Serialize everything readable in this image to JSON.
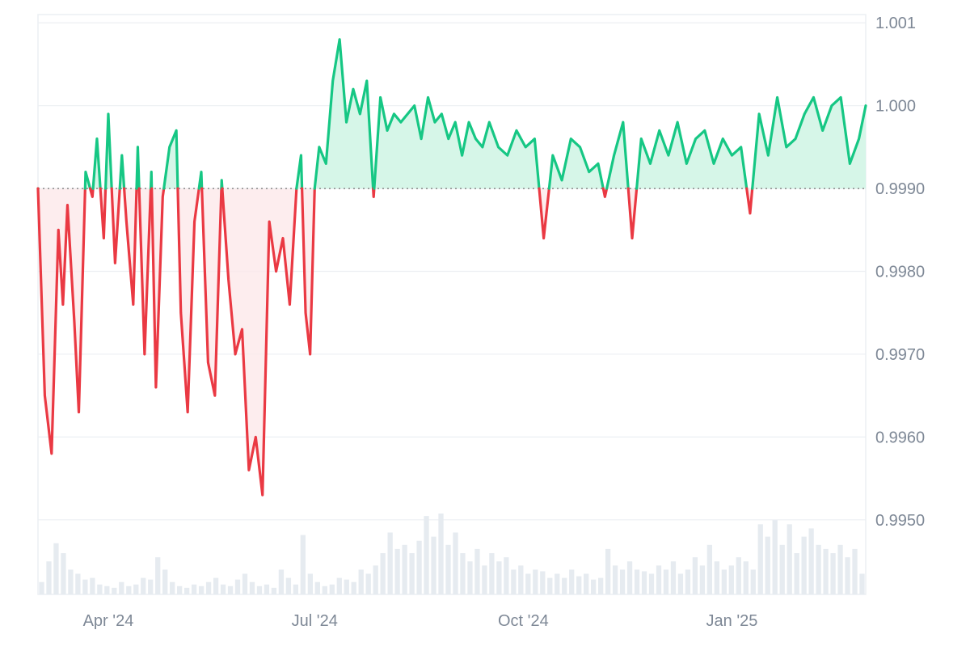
{
  "chart_data": {
    "type": "line",
    "baseline": 0.999,
    "ylim": [
      0.9941,
      1.0011
    ],
    "y_ticks": [
      {
        "value": 1.001,
        "label": "1.001"
      },
      {
        "value": 1.0,
        "label": "1.000"
      },
      {
        "value": 0.999,
        "label": "0.9990"
      },
      {
        "value": 0.998,
        "label": "0.9980"
      },
      {
        "value": 0.997,
        "label": "0.9970"
      },
      {
        "value": 0.996,
        "label": "0.9960"
      },
      {
        "value": 0.995,
        "label": "0.9950"
      }
    ],
    "x_start": "2024-03-01",
    "x_end": "2025-03-01",
    "x_ticks": [
      {
        "date": "2024-04-01",
        "label": "Apr '24"
      },
      {
        "date": "2024-07-01",
        "label": "Jul '24"
      },
      {
        "date": "2024-10-01",
        "label": "Oct '24"
      },
      {
        "date": "2025-01-01",
        "label": "Jan '25"
      }
    ],
    "colors": {
      "above": "#16c784",
      "below": "#ea3943",
      "above_fill": "#d1f5e6",
      "below_fill": "#fde8ea",
      "baseline": "#888888",
      "volume": "#e6ebf0",
      "grid": "#eceff3",
      "axis_text": "#7e8896"
    },
    "grid": true,
    "series": [
      {
        "x": [
          "2024-03-01",
          "2024-03-04",
          "2024-03-07",
          "2024-03-10",
          "2024-03-12",
          "2024-03-14",
          "2024-03-17",
          "2024-03-19",
          "2024-03-22",
          "2024-03-25",
          "2024-03-27",
          "2024-03-30",
          "2024-04-01",
          "2024-04-04",
          "2024-04-07",
          "2024-04-09",
          "2024-04-12",
          "2024-04-14",
          "2024-04-17",
          "2024-04-20",
          "2024-04-22",
          "2024-04-25",
          "2024-04-28",
          "2024-05-01",
          "2024-05-03",
          "2024-05-06",
          "2024-05-09",
          "2024-05-12",
          "2024-05-15",
          "2024-05-18",
          "2024-05-21",
          "2024-05-24",
          "2024-05-27",
          "2024-05-30",
          "2024-06-02",
          "2024-06-05",
          "2024-06-08",
          "2024-06-11",
          "2024-06-14",
          "2024-06-17",
          "2024-06-20",
          "2024-06-23",
          "2024-06-25",
          "2024-06-27",
          "2024-06-29",
          "2024-07-01",
          "2024-07-03",
          "2024-07-06",
          "2024-07-09",
          "2024-07-12",
          "2024-07-15",
          "2024-07-18",
          "2024-07-21",
          "2024-07-24",
          "2024-07-27",
          "2024-07-30",
          "2024-08-02",
          "2024-08-05",
          "2024-08-08",
          "2024-08-11",
          "2024-08-14",
          "2024-08-17",
          "2024-08-20",
          "2024-08-23",
          "2024-08-26",
          "2024-08-29",
          "2024-09-01",
          "2024-09-04",
          "2024-09-07",
          "2024-09-10",
          "2024-09-13",
          "2024-09-16",
          "2024-09-20",
          "2024-09-24",
          "2024-09-28",
          "2024-10-02",
          "2024-10-06",
          "2024-10-10",
          "2024-10-14",
          "2024-10-18",
          "2024-10-22",
          "2024-10-26",
          "2024-10-30",
          "2024-11-03",
          "2024-11-06",
          "2024-11-10",
          "2024-11-14",
          "2024-11-18",
          "2024-11-22",
          "2024-11-26",
          "2024-11-30",
          "2024-12-04",
          "2024-12-08",
          "2024-12-12",
          "2024-12-16",
          "2024-12-20",
          "2024-12-24",
          "2024-12-28",
          "2025-01-01",
          "2025-01-05",
          "2025-01-09",
          "2025-01-13",
          "2025-01-17",
          "2025-01-21",
          "2025-01-25",
          "2025-01-29",
          "2025-02-02",
          "2025-02-06",
          "2025-02-10",
          "2025-02-14",
          "2025-02-18",
          "2025-02-22",
          "2025-02-26",
          "2025-03-01"
        ],
        "values": [
          0.999,
          0.9965,
          0.9958,
          0.9985,
          0.9976,
          0.9988,
          0.9974,
          0.9963,
          0.9992,
          0.9989,
          0.9996,
          0.9984,
          0.9999,
          0.9981,
          0.9994,
          0.9986,
          0.9976,
          0.9995,
          0.997,
          0.9992,
          0.9966,
          0.9989,
          0.9995,
          0.9997,
          0.9975,
          0.9963,
          0.9986,
          0.9992,
          0.9969,
          0.9965,
          0.9991,
          0.9979,
          0.997,
          0.9973,
          0.9956,
          0.996,
          0.9953,
          0.9986,
          0.998,
          0.9984,
          0.9976,
          0.999,
          0.9994,
          0.9975,
          0.997,
          0.999,
          0.9995,
          0.9993,
          1.0003,
          1.0008,
          0.9998,
          1.0002,
          0.9999,
          1.0003,
          0.9989,
          1.0001,
          0.9997,
          0.9999,
          0.9998,
          0.9999,
          1.0,
          0.9996,
          1.0001,
          0.9998,
          0.9999,
          0.9996,
          0.9998,
          0.9994,
          0.9998,
          0.9996,
          0.9995,
          0.9998,
          0.9995,
          0.9994,
          0.9997,
          0.9995,
          0.9996,
          0.9984,
          0.9994,
          0.9991,
          0.9996,
          0.9995,
          0.9992,
          0.9993,
          0.9989,
          0.9994,
          0.9998,
          0.9984,
          0.9996,
          0.9993,
          0.9997,
          0.9994,
          0.9998,
          0.9993,
          0.9996,
          0.9997,
          0.9993,
          0.9996,
          0.9994,
          0.9995,
          0.9987,
          0.9999,
          0.9994,
          1.0001,
          0.9995,
          0.9996,
          0.9999,
          1.0001,
          0.9997,
          1.0,
          1.0001,
          0.9993,
          0.9996,
          1.0
        ]
      }
    ],
    "volume": [
      0.15,
      0.4,
      0.62,
      0.5,
      0.3,
      0.25,
      0.18,
      0.2,
      0.12,
      0.1,
      0.08,
      0.15,
      0.1,
      0.12,
      0.2,
      0.18,
      0.45,
      0.3,
      0.15,
      0.1,
      0.08,
      0.12,
      0.1,
      0.15,
      0.2,
      0.12,
      0.1,
      0.18,
      0.25,
      0.15,
      0.1,
      0.12,
      0.08,
      0.3,
      0.2,
      0.12,
      0.72,
      0.25,
      0.15,
      0.1,
      0.12,
      0.2,
      0.18,
      0.15,
      0.3,
      0.25,
      0.35,
      0.5,
      0.75,
      0.55,
      0.6,
      0.5,
      0.65,
      0.95,
      0.7,
      0.98,
      0.6,
      0.75,
      0.5,
      0.4,
      0.55,
      0.35,
      0.5,
      0.4,
      0.45,
      0.3,
      0.35,
      0.25,
      0.3,
      0.28,
      0.2,
      0.25,
      0.2,
      0.3,
      0.22,
      0.25,
      0.18,
      0.2,
      0.55,
      0.35,
      0.3,
      0.4,
      0.3,
      0.28,
      0.25,
      0.35,
      0.3,
      0.4,
      0.25,
      0.3,
      0.45,
      0.35,
      0.6,
      0.4,
      0.3,
      0.35,
      0.45,
      0.4,
      0.3,
      0.85,
      0.7,
      0.9,
      0.6,
      0.85,
      0.5,
      0.7,
      0.8,
      0.6,
      0.55,
      0.5,
      0.6,
      0.45,
      0.55,
      0.25
    ]
  }
}
